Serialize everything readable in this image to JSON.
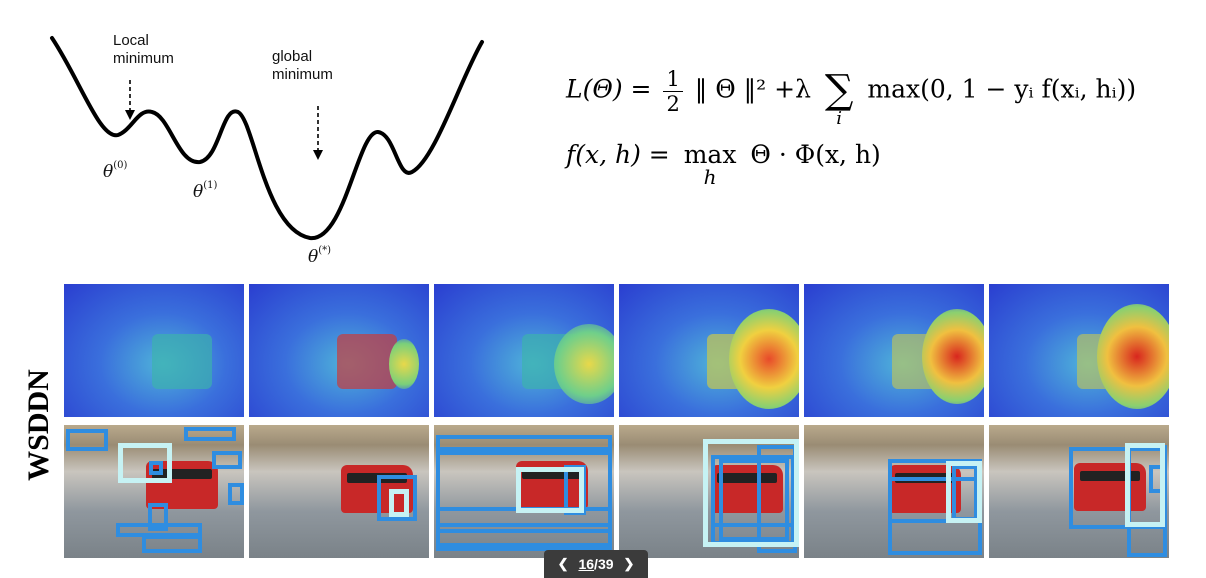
{
  "diagram": {
    "local_label": "Local\nminimum",
    "global_label": "global\nminimum",
    "theta0": "θ",
    "theta0_sup": "(0)",
    "theta1": "θ",
    "theta1_sup": "(1)",
    "theta_star": "θ",
    "theta_star_sup": "(*)"
  },
  "equations": {
    "eq1_lhs": "L(Θ) =",
    "eq1_frac_num": "1",
    "eq1_frac_den": "2",
    "eq1_norm": "‖ Θ ‖² +λ",
    "eq1_sum_sub": "i",
    "eq1_rhs": "max(0, 1 − yᵢ f(xᵢ, hᵢ))",
    "eq2_lhs": "f(x, h) =",
    "eq2_max": "max",
    "eq2_max_sub": "h",
    "eq2_rhs": "Θ · Φ(x, h)"
  },
  "method_label": "WSDDN",
  "pager": {
    "current": "16",
    "separator": "/",
    "total": "39",
    "prev_icon": "chevron-left-icon",
    "next_icon": "chevron-right-icon"
  },
  "colors": {
    "box_blue": "#2f8de0",
    "box_highlight": "#c6f2f4"
  }
}
